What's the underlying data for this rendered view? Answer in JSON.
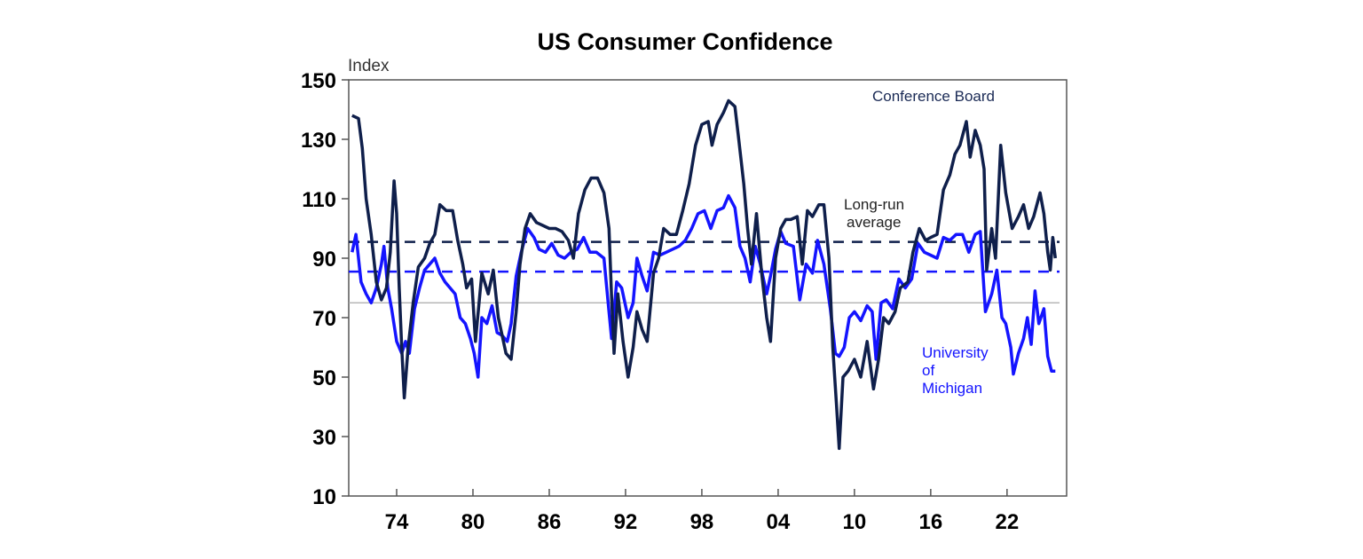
{
  "chart_data": {
    "type": "line",
    "title": "US Consumer Confidence",
    "ylabel": "Index",
    "xlabel": "",
    "ylim": [
      10,
      150
    ],
    "xlim": [
      1970.2,
      2026.7
    ],
    "yticks": [
      10,
      30,
      50,
      70,
      90,
      110,
      130,
      150
    ],
    "xticks": [
      {
        "year": 1974,
        "label": "74"
      },
      {
        "year": 1980,
        "label": "80"
      },
      {
        "year": 1986,
        "label": "86"
      },
      {
        "year": 1992,
        "label": "92"
      },
      {
        "year": 1998,
        "label": "98"
      },
      {
        "year": 2004,
        "label": "04"
      },
      {
        "year": 2010,
        "label": "10"
      },
      {
        "year": 2016,
        "label": "16"
      },
      {
        "year": 2022,
        "label": "22"
      }
    ],
    "grid": false,
    "series": [
      {
        "name": "Conference Board",
        "color": "#0f1f4b",
        "points": [
          [
            1970.5,
            138
          ],
          [
            1971.0,
            137
          ],
          [
            1971.3,
            127
          ],
          [
            1971.6,
            110
          ],
          [
            1972.0,
            98
          ],
          [
            1972.4,
            82
          ],
          [
            1972.8,
            76
          ],
          [
            1973.2,
            80
          ],
          [
            1973.5,
            92
          ],
          [
            1973.8,
            116
          ],
          [
            1974.0,
            105
          ],
          [
            1974.2,
            80
          ],
          [
            1974.4,
            60
          ],
          [
            1974.6,
            43
          ],
          [
            1974.9,
            60
          ],
          [
            1975.3,
            75
          ],
          [
            1975.7,
            87
          ],
          [
            1976.2,
            90
          ],
          [
            1976.6,
            95
          ],
          [
            1977.0,
            98
          ],
          [
            1977.4,
            108
          ],
          [
            1977.9,
            106
          ],
          [
            1978.4,
            106
          ],
          [
            1978.8,
            96
          ],
          [
            1979.2,
            88
          ],
          [
            1979.5,
            80
          ],
          [
            1979.9,
            83
          ],
          [
            1980.2,
            62
          ],
          [
            1980.7,
            85
          ],
          [
            1981.2,
            78
          ],
          [
            1981.6,
            86
          ],
          [
            1982.0,
            70
          ],
          [
            1982.6,
            58
          ],
          [
            1983.0,
            56
          ],
          [
            1983.4,
            72
          ],
          [
            1983.7,
            88
          ],
          [
            1984.1,
            100
          ],
          [
            1984.5,
            105
          ],
          [
            1985.0,
            102
          ],
          [
            1985.5,
            101
          ],
          [
            1986.0,
            100
          ],
          [
            1986.5,
            100
          ],
          [
            1987.0,
            99
          ],
          [
            1987.5,
            96
          ],
          [
            1987.9,
            90
          ],
          [
            1988.3,
            105
          ],
          [
            1988.8,
            113
          ],
          [
            1989.3,
            117
          ],
          [
            1989.8,
            117
          ],
          [
            1990.3,
            112
          ],
          [
            1990.7,
            100
          ],
          [
            1990.9,
            77
          ],
          [
            1991.1,
            58
          ],
          [
            1991.4,
            78
          ],
          [
            1991.8,
            62
          ],
          [
            1992.2,
            50
          ],
          [
            1992.6,
            60
          ],
          [
            1992.9,
            72
          ],
          [
            1993.3,
            66
          ],
          [
            1993.7,
            62
          ],
          [
            1994.2,
            85
          ],
          [
            1994.6,
            90
          ],
          [
            1995.0,
            100
          ],
          [
            1995.5,
            98
          ],
          [
            1996.0,
            98
          ],
          [
            1996.5,
            106
          ],
          [
            1997.0,
            115
          ],
          [
            1997.5,
            128
          ],
          [
            1998.0,
            135
          ],
          [
            1998.5,
            136
          ],
          [
            1998.8,
            128
          ],
          [
            1999.2,
            135
          ],
          [
            1999.7,
            139
          ],
          [
            2000.1,
            143
          ],
          [
            2000.6,
            141
          ],
          [
            2000.9,
            130
          ],
          [
            2001.3,
            115
          ],
          [
            2001.6,
            100
          ],
          [
            2001.9,
            88
          ],
          [
            2002.3,
            105
          ],
          [
            2002.7,
            85
          ],
          [
            2003.1,
            70
          ],
          [
            2003.4,
            62
          ],
          [
            2003.8,
            90
          ],
          [
            2004.2,
            100
          ],
          [
            2004.6,
            103
          ],
          [
            2005.0,
            103
          ],
          [
            2005.5,
            104
          ],
          [
            2005.9,
            88
          ],
          [
            2006.3,
            106
          ],
          [
            2006.7,
            104
          ],
          [
            2007.2,
            108
          ],
          [
            2007.6,
            108
          ],
          [
            2008.0,
            90
          ],
          [
            2008.3,
            60
          ],
          [
            2008.6,
            40
          ],
          [
            2008.8,
            26
          ],
          [
            2009.1,
            50
          ],
          [
            2009.5,
            52
          ],
          [
            2010.0,
            56
          ],
          [
            2010.5,
            50
          ],
          [
            2011.0,
            62
          ],
          [
            2011.5,
            46
          ],
          [
            2011.9,
            56
          ],
          [
            2012.3,
            70
          ],
          [
            2012.7,
            68
          ],
          [
            2013.2,
            72
          ],
          [
            2013.6,
            80
          ],
          [
            2014.2,
            82
          ],
          [
            2014.6,
            92
          ],
          [
            2015.1,
            100
          ],
          [
            2015.6,
            96
          ],
          [
            2016.0,
            97
          ],
          [
            2016.5,
            98
          ],
          [
            2017.0,
            113
          ],
          [
            2017.5,
            118
          ],
          [
            2017.9,
            125
          ],
          [
            2018.3,
            128
          ],
          [
            2018.8,
            136
          ],
          [
            2019.1,
            124
          ],
          [
            2019.5,
            133
          ],
          [
            2019.9,
            128
          ],
          [
            2020.2,
            120
          ],
          [
            2020.4,
            86
          ],
          [
            2020.8,
            100
          ],
          [
            2021.1,
            90
          ],
          [
            2021.5,
            128
          ],
          [
            2021.9,
            112
          ],
          [
            2022.4,
            100
          ],
          [
            2022.9,
            104
          ],
          [
            2023.3,
            108
          ],
          [
            2023.7,
            100
          ],
          [
            2024.1,
            104
          ],
          [
            2024.6,
            112
          ],
          [
            2024.9,
            105
          ],
          [
            2025.2,
            92
          ],
          [
            2025.4,
            86
          ],
          [
            2025.6,
            97
          ],
          [
            2025.8,
            90
          ]
        ]
      },
      {
        "name": "University of Michigan",
        "color": "#1414ff",
        "points": [
          [
            1970.5,
            92
          ],
          [
            1970.8,
            98
          ],
          [
            1971.2,
            82
          ],
          [
            1971.6,
            78
          ],
          [
            1972.0,
            75
          ],
          [
            1972.4,
            80
          ],
          [
            1972.8,
            88
          ],
          [
            1973.0,
            94
          ],
          [
            1973.3,
            80
          ],
          [
            1973.6,
            73
          ],
          [
            1974.0,
            62
          ],
          [
            1974.4,
            58
          ],
          [
            1974.7,
            62
          ],
          [
            1975.0,
            58
          ],
          [
            1975.4,
            73
          ],
          [
            1975.8,
            80
          ],
          [
            1976.2,
            86
          ],
          [
            1976.6,
            88
          ],
          [
            1977.0,
            90
          ],
          [
            1977.4,
            85
          ],
          [
            1977.8,
            82
          ],
          [
            1978.2,
            80
          ],
          [
            1978.6,
            78
          ],
          [
            1979.0,
            70
          ],
          [
            1979.4,
            68
          ],
          [
            1979.8,
            63
          ],
          [
            1980.1,
            58
          ],
          [
            1980.4,
            50
          ],
          [
            1980.7,
            70
          ],
          [
            1981.1,
            68
          ],
          [
            1981.5,
            74
          ],
          [
            1981.9,
            65
          ],
          [
            1982.3,
            64
          ],
          [
            1982.7,
            62
          ],
          [
            1983.0,
            68
          ],
          [
            1983.4,
            84
          ],
          [
            1983.8,
            92
          ],
          [
            1984.3,
            100
          ],
          [
            1984.8,
            97
          ],
          [
            1985.2,
            93
          ],
          [
            1985.7,
            92
          ],
          [
            1986.2,
            95
          ],
          [
            1986.7,
            91
          ],
          [
            1987.2,
            90
          ],
          [
            1987.7,
            92
          ],
          [
            1988.2,
            93
          ],
          [
            1988.7,
            97
          ],
          [
            1989.2,
            92
          ],
          [
            1989.7,
            92
          ],
          [
            1990.3,
            90
          ],
          [
            1990.7,
            72
          ],
          [
            1990.9,
            63
          ],
          [
            1991.3,
            82
          ],
          [
            1991.7,
            80
          ],
          [
            1992.2,
            70
          ],
          [
            1992.6,
            75
          ],
          [
            1992.9,
            90
          ],
          [
            1993.3,
            84
          ],
          [
            1993.7,
            79
          ],
          [
            1994.2,
            92
          ],
          [
            1994.7,
            91
          ],
          [
            1995.2,
            92
          ],
          [
            1995.7,
            93
          ],
          [
            1996.2,
            94
          ],
          [
            1996.7,
            96
          ],
          [
            1997.2,
            100
          ],
          [
            1997.7,
            105
          ],
          [
            1998.2,
            106
          ],
          [
            1998.7,
            100
          ],
          [
            1999.2,
            106
          ],
          [
            1999.7,
            107
          ],
          [
            2000.1,
            111
          ],
          [
            2000.6,
            107
          ],
          [
            2001.0,
            94
          ],
          [
            2001.4,
            90
          ],
          [
            2001.8,
            82
          ],
          [
            2002.2,
            94
          ],
          [
            2002.6,
            88
          ],
          [
            2003.1,
            78
          ],
          [
            2003.4,
            84
          ],
          [
            2003.8,
            93
          ],
          [
            2004.2,
            99
          ],
          [
            2004.6,
            95
          ],
          [
            2005.2,
            94
          ],
          [
            2005.7,
            76
          ],
          [
            2006.2,
            88
          ],
          [
            2006.7,
            85
          ],
          [
            2007.1,
            96
          ],
          [
            2007.6,
            88
          ],
          [
            2008.1,
            73
          ],
          [
            2008.5,
            58
          ],
          [
            2008.8,
            57
          ],
          [
            2009.2,
            60
          ],
          [
            2009.6,
            70
          ],
          [
            2010.0,
            72
          ],
          [
            2010.5,
            69
          ],
          [
            2011.0,
            74
          ],
          [
            2011.4,
            72
          ],
          [
            2011.7,
            56
          ],
          [
            2012.1,
            75
          ],
          [
            2012.5,
            76
          ],
          [
            2013.0,
            73
          ],
          [
            2013.5,
            83
          ],
          [
            2014.0,
            80
          ],
          [
            2014.5,
            83
          ],
          [
            2015.0,
            95
          ],
          [
            2015.5,
            92
          ],
          [
            2016.0,
            91
          ],
          [
            2016.5,
            90
          ],
          [
            2017.0,
            97
          ],
          [
            2017.5,
            96
          ],
          [
            2018.0,
            98
          ],
          [
            2018.5,
            98
          ],
          [
            2019.0,
            92
          ],
          [
            2019.5,
            98
          ],
          [
            2019.9,
            99
          ],
          [
            2020.3,
            72
          ],
          [
            2020.8,
            78
          ],
          [
            2021.2,
            86
          ],
          [
            2021.6,
            70
          ],
          [
            2021.9,
            68
          ],
          [
            2022.3,
            60
          ],
          [
            2022.5,
            51
          ],
          [
            2022.9,
            58
          ],
          [
            2023.3,
            63
          ],
          [
            2023.6,
            70
          ],
          [
            2023.9,
            61
          ],
          [
            2024.2,
            79
          ],
          [
            2024.5,
            68
          ],
          [
            2024.9,
            73
          ],
          [
            2025.2,
            57
          ],
          [
            2025.5,
            52
          ],
          [
            2025.8,
            52
          ]
        ]
      }
    ],
    "reference_lines": [
      {
        "series": "Conference Board",
        "label": "long-run average",
        "value": 95.5,
        "style": "dashed",
        "color": "#0f1f4b"
      },
      {
        "series": "University of Michigan",
        "label": "long-run average",
        "value": 85.5,
        "style": "dashed",
        "color": "#1414ff"
      },
      {
        "value": 75,
        "style": "solid",
        "color": "#aaaaaa"
      }
    ],
    "annotations": {
      "conference_board": "Conference Board",
      "long_run_1": "Long-run",
      "long_run_2": "average",
      "umich_1": "University",
      "umich_2": "of",
      "umich_3": "Michigan"
    }
  }
}
